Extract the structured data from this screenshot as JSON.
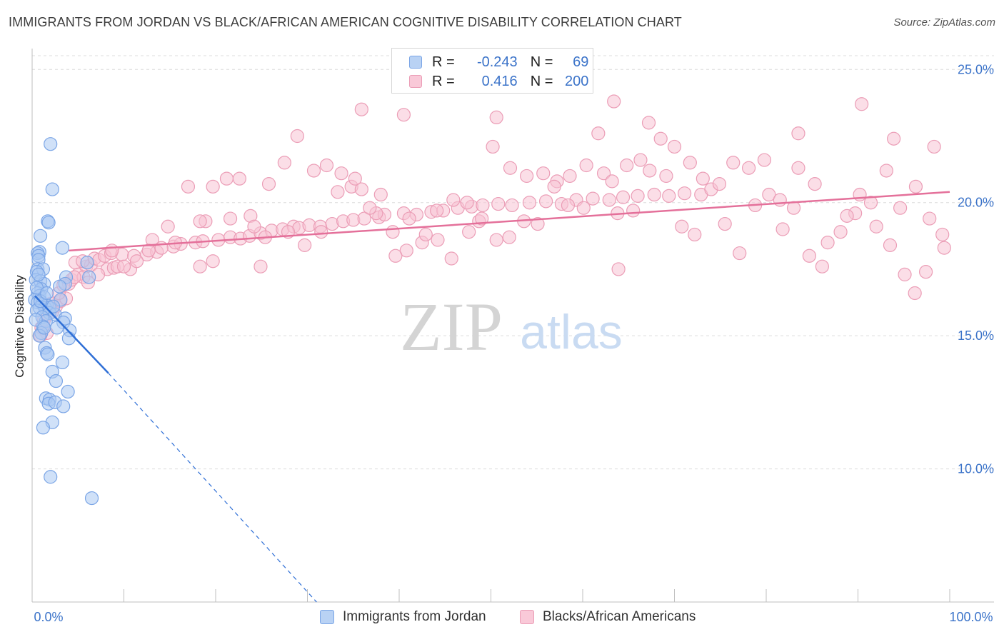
{
  "title": "IMMIGRANTS FROM JORDAN VS BLACK/AFRICAN AMERICAN COGNITIVE DISABILITY CORRELATION CHART",
  "source": "Source: ZipAtlas.com",
  "watermark": {
    "zip": "ZIP",
    "atlas": "atlas"
  },
  "legend": {
    "rows": [
      {
        "r_label": "R =",
        "r_value": "-0.243",
        "n_label": "N =",
        "n_value": "69",
        "color": "#a9c8f2"
      },
      {
        "r_label": "R =",
        "r_value": "0.416",
        "n_label": "N =",
        "n_value": "200",
        "color": "#f8bccf"
      }
    ]
  },
  "colors": {
    "blue_fill": "#a9c8f2",
    "blue_stroke": "#7aa5e6",
    "blue_line": "#2f6fd6",
    "pink_fill": "#f8c3d3",
    "pink_stroke": "#eb9db6",
    "pink_line": "#e4709a",
    "tick_label": "#3b73c9",
    "grid": "#dcdcdc"
  },
  "chart_data": {
    "type": "scatter",
    "title": "IMMIGRANTS FROM JORDAN VS BLACK/AFRICAN AMERICAN COGNITIVE DISABILITY CORRELATION CHART",
    "xlabel": "",
    "ylabel": "Cognitive Disability",
    "xlim": [
      0,
      100
    ],
    "ylim": [
      5,
      26
    ],
    "x_tick_labels": [
      "0.0%",
      "100.0%"
    ],
    "y_ticks": [
      10,
      15,
      20,
      25
    ],
    "y_tick_labels": [
      "10.0%",
      "15.0%",
      "20.0%",
      "25.0%"
    ],
    "grid": "horizontal dashed",
    "legend_placement": "top-center",
    "series": [
      {
        "name": "Immigrants from Jordan",
        "color": "#a9c8f2",
        "trend": {
          "x": [
            0.3,
            8.3
          ],
          "y": [
            16.5,
            13.6
          ],
          "dashed_extension_to": [
            31.0,
            5.0
          ]
        },
        "points": [
          [
            2.0,
            22.2
          ],
          [
            2.2,
            20.5
          ],
          [
            1.7,
            19.3
          ],
          [
            1.8,
            19.25
          ],
          [
            0.9,
            18.75
          ],
          [
            3.3,
            18.3
          ],
          [
            0.8,
            18.15
          ],
          [
            0.6,
            18.1
          ],
          [
            0.7,
            18.0
          ],
          [
            0.7,
            17.85
          ],
          [
            0.6,
            17.5
          ],
          [
            1.2,
            17.5
          ],
          [
            0.5,
            17.4
          ],
          [
            6.0,
            17.75
          ],
          [
            3.7,
            17.2
          ],
          [
            6.2,
            17.2
          ],
          [
            0.4,
            17.1
          ],
          [
            0.9,
            17.05
          ],
          [
            1.3,
            16.95
          ],
          [
            3.6,
            16.95
          ],
          [
            3.0,
            16.85
          ],
          [
            1.0,
            16.75
          ],
          [
            0.6,
            16.6
          ],
          [
            0.8,
            16.5
          ],
          [
            1.3,
            16.45
          ],
          [
            0.3,
            16.35
          ],
          [
            3.1,
            16.35
          ],
          [
            0.6,
            16.25
          ],
          [
            1.1,
            16.2
          ],
          [
            1.6,
            16.15
          ],
          [
            0.8,
            16.05
          ],
          [
            1.4,
            16.05
          ],
          [
            1.9,
            16.05
          ],
          [
            0.5,
            15.95
          ],
          [
            1.9,
            15.85
          ],
          [
            2.5,
            15.8
          ],
          [
            1.1,
            15.7
          ],
          [
            3.6,
            15.65
          ],
          [
            1.5,
            15.55
          ],
          [
            3.4,
            15.5
          ],
          [
            1.2,
            15.35
          ],
          [
            2.7,
            15.3
          ],
          [
            4.1,
            15.2
          ],
          [
            1.0,
            15.1
          ],
          [
            0.8,
            15.0
          ],
          [
            4.0,
            14.9
          ],
          [
            1.4,
            14.55
          ],
          [
            1.6,
            14.35
          ],
          [
            1.7,
            14.3
          ],
          [
            3.3,
            14.0
          ],
          [
            2.2,
            13.65
          ],
          [
            2.6,
            13.3
          ],
          [
            3.9,
            12.9
          ],
          [
            1.5,
            12.65
          ],
          [
            1.9,
            12.6
          ],
          [
            1.8,
            12.45
          ],
          [
            2.5,
            12.5
          ],
          [
            3.4,
            12.35
          ],
          [
            2.2,
            11.75
          ],
          [
            1.2,
            11.55
          ],
          [
            2.0,
            9.7
          ],
          [
            6.5,
            8.9
          ],
          [
            0.5,
            16.8
          ],
          [
            0.9,
            16.3
          ],
          [
            1.6,
            16.6
          ],
          [
            0.4,
            15.6
          ],
          [
            2.3,
            16.1
          ],
          [
            1.3,
            15.3
          ],
          [
            0.7,
            17.3
          ]
        ]
      },
      {
        "name": "Blacks/African Americans",
        "color": "#f8c3d3",
        "trend": {
          "x": [
            4.0,
            100.0
          ],
          "y": [
            18.2,
            20.4
          ]
        },
        "points": [
          [
            1.0,
            15.3
          ],
          [
            1.3,
            15.6
          ],
          [
            1.7,
            15.8
          ],
          [
            2.2,
            15.9
          ],
          [
            2.6,
            16.1
          ],
          [
            2.0,
            16.2
          ],
          [
            3.1,
            16.3
          ],
          [
            3.7,
            16.4
          ],
          [
            1.6,
            15.1
          ],
          [
            0.9,
            15.0
          ],
          [
            2.9,
            16.6
          ],
          [
            4.0,
            16.95
          ],
          [
            4.3,
            17.1
          ],
          [
            5.0,
            17.3
          ],
          [
            5.9,
            17.6
          ],
          [
            6.4,
            17.65
          ],
          [
            4.7,
            17.75
          ],
          [
            5.5,
            17.8
          ],
          [
            6.8,
            17.9
          ],
          [
            8.2,
            17.5
          ],
          [
            8.9,
            17.55
          ],
          [
            9.3,
            17.6
          ],
          [
            10.7,
            17.5
          ],
          [
            7.3,
            17.85
          ],
          [
            7.9,
            18.0
          ],
          [
            8.6,
            18.1
          ],
          [
            9.8,
            18.05
          ],
          [
            11.1,
            18.0
          ],
          [
            12.5,
            18.05
          ],
          [
            13.6,
            18.15
          ],
          [
            15.4,
            18.35
          ],
          [
            16.2,
            18.45
          ],
          [
            17.8,
            18.5
          ],
          [
            18.6,
            18.55
          ],
          [
            20.3,
            18.6
          ],
          [
            21.6,
            18.7
          ],
          [
            22.7,
            18.65
          ],
          [
            23.7,
            18.75
          ],
          [
            24.9,
            18.85
          ],
          [
            26.1,
            18.95
          ],
          [
            27.3,
            19.0
          ],
          [
            28.5,
            19.1
          ],
          [
            29.1,
            19.05
          ],
          [
            30.2,
            19.15
          ],
          [
            31.4,
            19.1
          ],
          [
            32.7,
            19.2
          ],
          [
            33.9,
            19.3
          ],
          [
            35.0,
            19.35
          ],
          [
            36.2,
            19.4
          ],
          [
            37.8,
            19.45
          ],
          [
            38.4,
            19.55
          ],
          [
            40.5,
            19.6
          ],
          [
            41.9,
            19.55
          ],
          [
            43.5,
            19.65
          ],
          [
            44.8,
            19.7
          ],
          [
            46.4,
            19.8
          ],
          [
            47.9,
            19.85
          ],
          [
            49.1,
            19.9
          ],
          [
            50.8,
            19.95
          ],
          [
            52.3,
            19.9
          ],
          [
            54.2,
            20.0
          ],
          [
            56.0,
            20.05
          ],
          [
            57.7,
            19.95
          ],
          [
            59.3,
            20.1
          ],
          [
            61.1,
            20.15
          ],
          [
            62.9,
            20.1
          ],
          [
            64.4,
            20.2
          ],
          [
            66.0,
            20.25
          ],
          [
            67.8,
            20.3
          ],
          [
            69.4,
            20.25
          ],
          [
            71.1,
            20.35
          ],
          [
            72.9,
            20.3
          ],
          [
            13.1,
            18.6
          ],
          [
            14.8,
            19.1
          ],
          [
            18.9,
            19.3
          ],
          [
            21.6,
            19.4
          ],
          [
            23.8,
            19.5
          ],
          [
            25.4,
            18.7
          ],
          [
            27.9,
            18.9
          ],
          [
            29.7,
            18.4
          ],
          [
            31.5,
            18.9
          ],
          [
            33.3,
            20.4
          ],
          [
            34.8,
            20.6
          ],
          [
            35.9,
            20.5
          ],
          [
            37.5,
            19.6
          ],
          [
            39.3,
            18.9
          ],
          [
            40.8,
            18.2
          ],
          [
            42.5,
            18.5
          ],
          [
            44.1,
            19.7
          ],
          [
            45.9,
            20.1
          ],
          [
            47.4,
            20.0
          ],
          [
            48.7,
            19.3
          ],
          [
            50.2,
            22.1
          ],
          [
            52.1,
            21.3
          ],
          [
            53.9,
            21.0
          ],
          [
            55.7,
            21.1
          ],
          [
            57.2,
            20.8
          ],
          [
            58.6,
            21.0
          ],
          [
            60.4,
            21.4
          ],
          [
            62.3,
            21.1
          ],
          [
            63.8,
            19.6
          ],
          [
            65.5,
            19.7
          ],
          [
            67.3,
            21.2
          ],
          [
            69.1,
            21.0
          ],
          [
            70.8,
            19.1
          ],
          [
            72.2,
            18.8
          ],
          [
            74.0,
            20.5
          ],
          [
            75.5,
            19.2
          ],
          [
            77.1,
            18.1
          ],
          [
            78.8,
            19.9
          ],
          [
            80.3,
            20.3
          ],
          [
            81.8,
            19.0
          ],
          [
            83.5,
            21.3
          ],
          [
            85.3,
            20.7
          ],
          [
            86.7,
            18.5
          ],
          [
            88.1,
            18.9
          ],
          [
            89.7,
            19.6
          ],
          [
            91.4,
            20.0
          ],
          [
            93.1,
            21.2
          ],
          [
            94.6,
            19.8
          ],
          [
            96.3,
            20.6
          ],
          [
            97.8,
            19.4
          ],
          [
            99.2,
            18.8
          ],
          [
            99.4,
            18.3
          ],
          [
            97.4,
            17.4
          ],
          [
            96.2,
            16.6
          ],
          [
            95.1,
            17.3
          ],
          [
            93.5,
            18.4
          ],
          [
            92.0,
            19.1
          ],
          [
            90.2,
            20.3
          ],
          [
            88.8,
            19.5
          ],
          [
            86.1,
            17.6
          ],
          [
            84.7,
            18.0
          ],
          [
            83.0,
            19.8
          ],
          [
            81.5,
            20.1
          ],
          [
            79.8,
            21.6
          ],
          [
            78.1,
            21.3
          ],
          [
            76.4,
            21.5
          ],
          [
            74.9,
            20.7
          ],
          [
            73.1,
            20.9
          ],
          [
            71.7,
            21.5
          ],
          [
            70.0,
            22.1
          ],
          [
            68.5,
            22.4
          ],
          [
            66.3,
            21.6
          ],
          [
            64.8,
            21.4
          ],
          [
            63.2,
            20.8
          ],
          [
            61.7,
            22.6
          ],
          [
            60.1,
            19.8
          ],
          [
            58.4,
            19.9
          ],
          [
            56.9,
            20.6
          ],
          [
            55.1,
            19.2
          ],
          [
            53.6,
            19.3
          ],
          [
            52.0,
            18.7
          ],
          [
            50.6,
            18.6
          ],
          [
            49.0,
            19.4
          ],
          [
            47.6,
            18.9
          ],
          [
            45.7,
            17.9
          ],
          [
            44.2,
            18.6
          ],
          [
            42.9,
            18.8
          ],
          [
            41.1,
            19.4
          ],
          [
            39.6,
            18.0
          ],
          [
            38.0,
            20.3
          ],
          [
            36.8,
            19.8
          ],
          [
            35.2,
            20.9
          ],
          [
            33.7,
            21.1
          ],
          [
            32.1,
            21.4
          ],
          [
            30.7,
            21.2
          ],
          [
            28.9,
            22.5
          ],
          [
            27.5,
            21.5
          ],
          [
            25.8,
            20.7
          ],
          [
            24.2,
            19.1
          ],
          [
            22.6,
            20.9
          ],
          [
            21.2,
            20.9
          ],
          [
            19.7,
            20.6
          ],
          [
            18.3,
            19.3
          ],
          [
            17.0,
            20.6
          ],
          [
            15.6,
            18.5
          ],
          [
            14.1,
            18.3
          ],
          [
            12.7,
            18.2
          ],
          [
            11.4,
            17.8
          ],
          [
            10.0,
            17.6
          ],
          [
            8.7,
            18.2
          ],
          [
            7.2,
            17.3
          ],
          [
            5.6,
            17.2
          ],
          [
            3.4,
            16.9
          ],
          [
            4.6,
            17.2
          ],
          [
            6.1,
            17.0
          ],
          [
            63.4,
            23.8
          ],
          [
            83.5,
            22.6
          ],
          [
            90.4,
            23.7
          ],
          [
            93.9,
            22.4
          ],
          [
            98.3,
            22.1
          ],
          [
            35.9,
            23.5
          ],
          [
            67.2,
            23.0
          ],
          [
            50.6,
            23.2
          ],
          [
            40.5,
            23.3
          ],
          [
            24.9,
            17.6
          ],
          [
            18.3,
            17.6
          ],
          [
            19.7,
            17.8
          ],
          [
            63.9,
            17.5
          ]
        ]
      }
    ]
  },
  "x_axis_labels": {
    "left": "0.0%",
    "right": "100.0%"
  },
  "bottom_legend": [
    "Immigrants from Jordan",
    "Blacks/African Americans"
  ]
}
